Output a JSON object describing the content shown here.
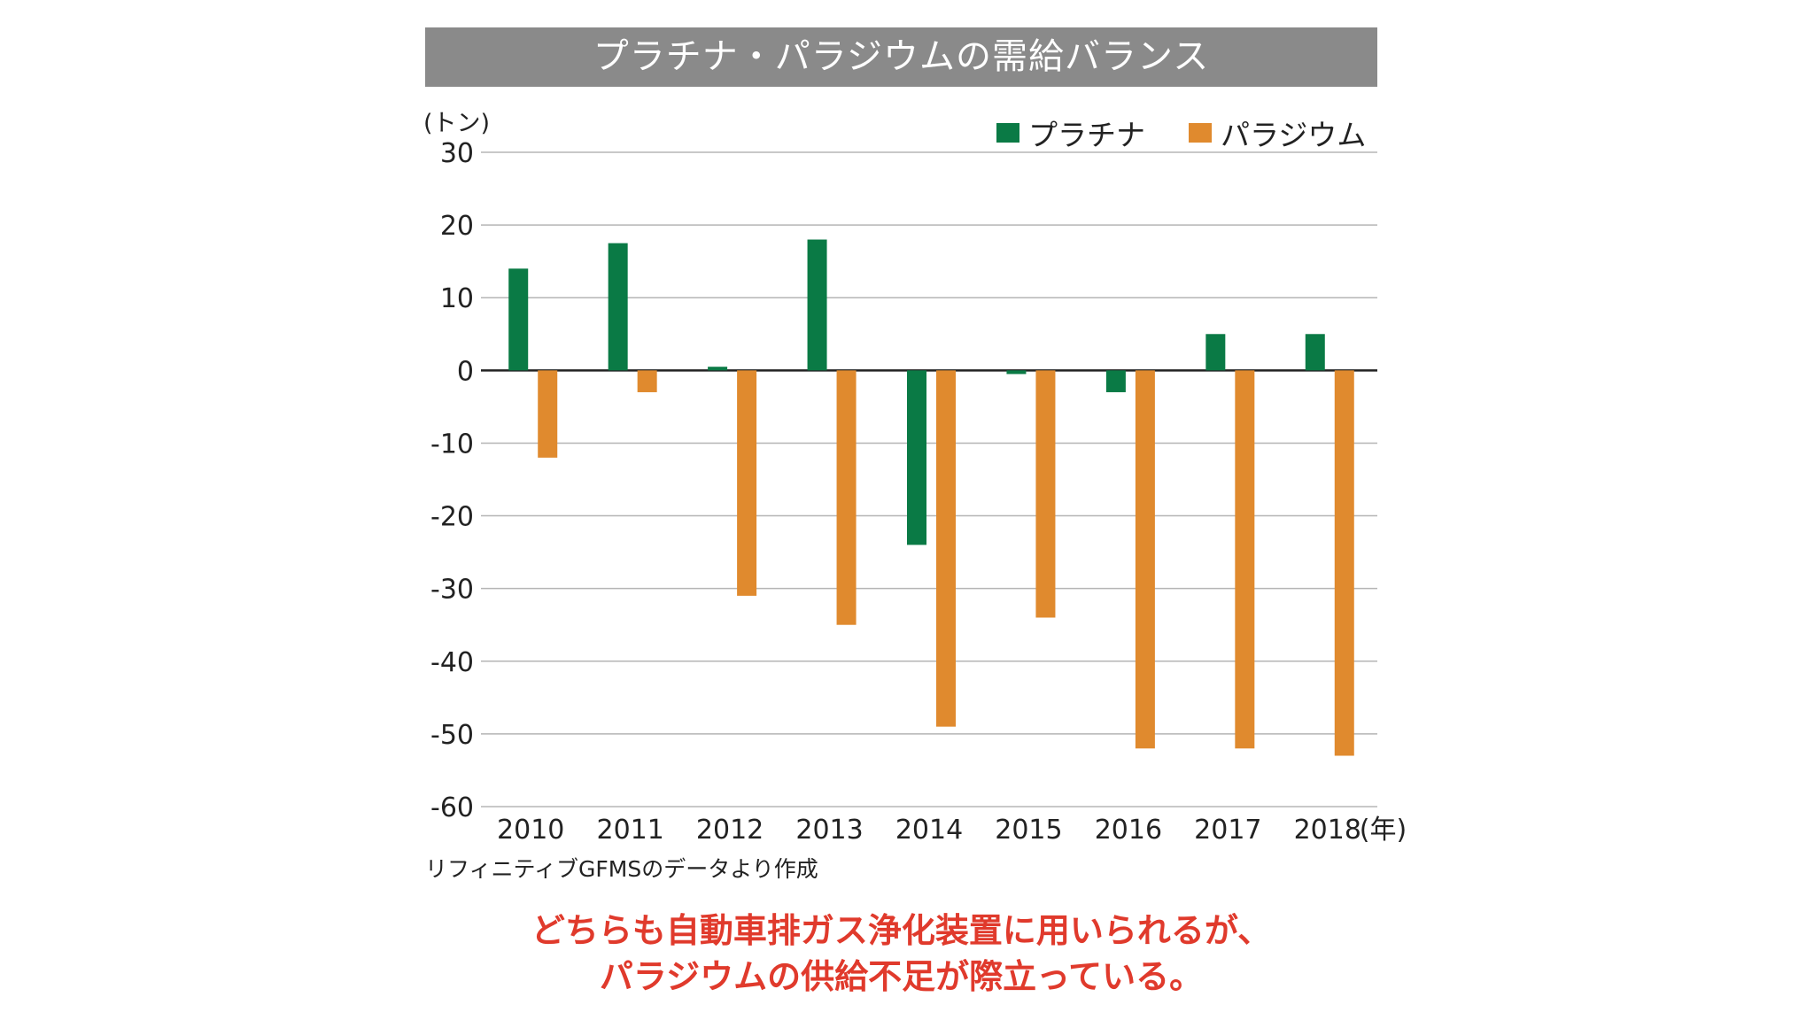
{
  "chart_data": {
    "type": "bar",
    "title": "プラチナ・パラジウムの需給バランス",
    "ylabel": "(トン)",
    "xlabel": "",
    "x_suffix": "(年)",
    "categories": [
      "2010",
      "2011",
      "2012",
      "2013",
      "2014",
      "2015",
      "2016",
      "2017",
      "2018"
    ],
    "series": [
      {
        "name": "プラチナ",
        "color": "#0a7a45",
        "values": [
          14,
          17.5,
          0.5,
          18,
          -24,
          -0.5,
          -3,
          5,
          5
        ]
      },
      {
        "name": "パラジウム",
        "color": "#e08a2e",
        "values": [
          -12,
          -3,
          -31,
          -35,
          -49,
          -34,
          -52,
          -52,
          -53
        ]
      }
    ],
    "ylim": [
      -60,
      30
    ],
    "yticks": [
      "30",
      "20",
      "10",
      "0",
      "-10",
      "-20",
      "-30",
      "-40",
      "-50",
      "-60"
    ],
    "ytick_values": [
      30,
      20,
      10,
      0,
      -10,
      -20,
      -30,
      -40,
      -50,
      -60
    ],
    "grid": true,
    "legend_position": "top-right"
  },
  "source": "リフィニティブGFMSのデータより作成",
  "caption": {
    "line1": "どちらも自動車排ガス浄化装置に用いられるが、",
    "line2": "パラジウムの供給不足が際立っている。"
  }
}
